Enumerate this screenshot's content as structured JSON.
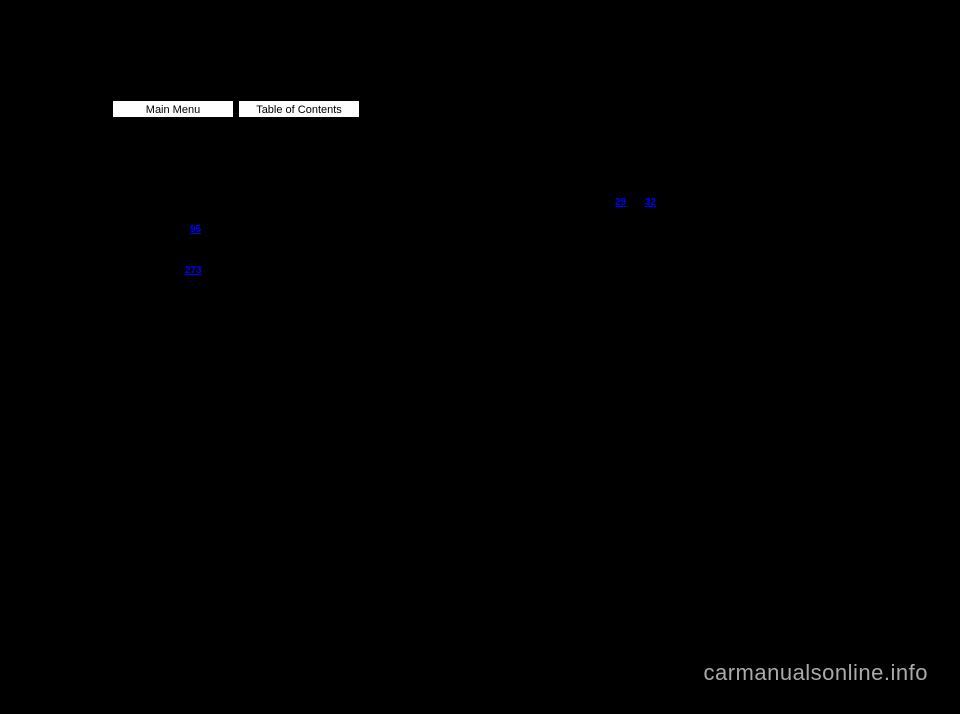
{
  "nav": {
    "main_menu": "Main Menu",
    "toc": "Table of Contents"
  },
  "refs": {
    "r1": "95",
    "r2": "273",
    "r3": "29",
    "r4": "32"
  },
  "watermark": "carmanualsonline.info"
}
